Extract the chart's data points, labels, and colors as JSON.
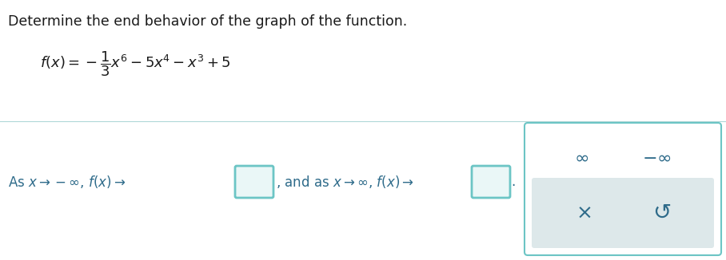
{
  "title": "Determine the end behavior of the graph of the function.",
  "title_color": "#1a1a1a",
  "title_fontsize": 12.5,
  "func_color": "#1a1a1a",
  "func_fontsize": 13,
  "text_color": "#2E6B8A",
  "answer_box_edge": "#6CC5C5",
  "answer_box_face": "#EAF7F7",
  "panel_edge": "#6CC5C5",
  "panel_face": "#ffffff",
  "btn_face": "#DDE8EA",
  "divider_color": "#B0D8D8",
  "background_color": "#ffffff"
}
